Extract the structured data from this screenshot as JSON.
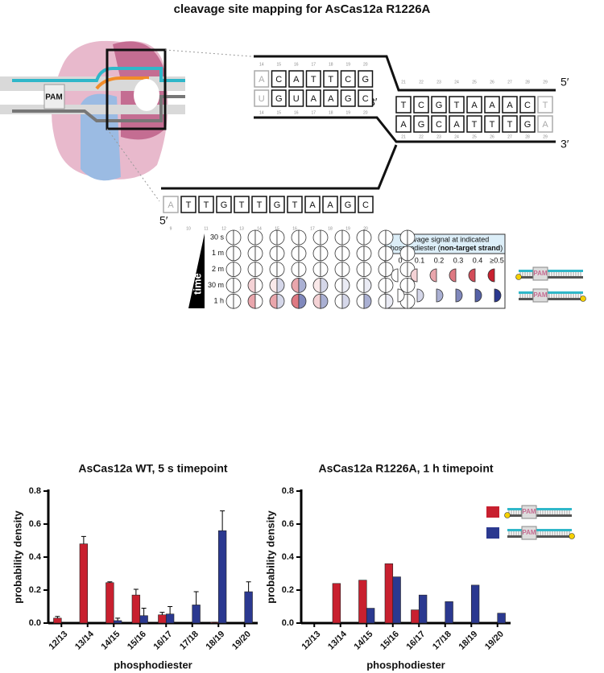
{
  "title": "cleavage site mapping for AsCas12a R1226A",
  "pam_label": "PAM",
  "strands": {
    "top_left": {
      "upper": [
        "A",
        "C",
        "A",
        "T",
        "T",
        "C",
        "G"
      ],
      "lower": [
        "U",
        "G",
        "U",
        "A",
        "A",
        "G",
        "C"
      ],
      "numbers": [
        14,
        15,
        16,
        17,
        18,
        19,
        20
      ],
      "end_label": "3′"
    },
    "right": {
      "upper": [
        "T",
        "C",
        "G",
        "T",
        "A",
        "A",
        "A",
        "C",
        "T"
      ],
      "lower": [
        "A",
        "G",
        "C",
        "A",
        "T",
        "T",
        "T",
        "G",
        "A"
      ],
      "numbers": [
        21,
        22,
        23,
        24,
        25,
        26,
        27,
        28,
        29
      ],
      "top_end": "5′",
      "bottom_end": "3′"
    },
    "bottom": {
      "bases": [
        "A",
        "T",
        "T",
        "G",
        "T",
        "T",
        "G",
        "T",
        "A",
        "A",
        "G",
        "C"
      ],
      "numbers": [
        9,
        10,
        11,
        12,
        13,
        14,
        15,
        16,
        17,
        18,
        19,
        20
      ],
      "end_label": "5′"
    }
  },
  "heatmap": {
    "axis_label": "time",
    "row_labels": [
      "30 s",
      "1 m",
      "2 m",
      "30 m",
      "1 h"
    ],
    "red": [
      [
        0,
        0,
        0,
        0,
        0,
        0,
        0,
        0,
        0
      ],
      [
        0,
        0,
        0,
        0,
        0,
        0,
        0,
        0,
        0
      ],
      [
        0,
        0,
        0,
        0,
        0,
        0,
        0,
        0,
        0
      ],
      [
        0,
        0.1,
        0.05,
        0.2,
        0.05,
        0,
        0,
        0,
        0
      ],
      [
        0,
        0.2,
        0.2,
        0.3,
        0.1,
        0,
        0,
        0,
        0
      ]
    ],
    "blue": [
      [
        0,
        0,
        0,
        0,
        0,
        0,
        0,
        0,
        0
      ],
      [
        0,
        0,
        0,
        0,
        0,
        0,
        0,
        0,
        0
      ],
      [
        0,
        0,
        0,
        0,
        0,
        0,
        0,
        0,
        0
      ],
      [
        0,
        0,
        0.1,
        0.2,
        0.1,
        0.05,
        0.05,
        0,
        0
      ],
      [
        0,
        0,
        0.1,
        0.3,
        0.2,
        0.1,
        0.2,
        0.05,
        0
      ]
    ],
    "legend": {
      "title_lines": [
        "cleavage signal at indicated",
        "phosphodiester (",
        ") "
      ],
      "title_bold": "non-target strand",
      "levels": [
        0,
        0.1,
        0.2,
        0.3,
        0.4,
        {
          "value": 0.5,
          "label": "≥0.5"
        }
      ]
    }
  },
  "chart_data": [
    {
      "type": "bar",
      "title": "AsCas12a WT, 5 s timepoint",
      "x_label": "phosphodiester",
      "y_label": "probability density",
      "categories": [
        "12/13",
        "13/14",
        "14/15",
        "15/16",
        "16/17",
        "17/18",
        "18/19",
        "19/20"
      ],
      "series": [
        {
          "color": "#c8202f",
          "values": [
            0.03,
            0.48,
            0.245,
            0.17,
            0.05,
            0,
            0.005,
            0
          ],
          "errors": [
            0.01,
            0.045,
            0.005,
            0.035,
            0.015,
            0,
            0,
            0
          ]
        },
        {
          "color": "#2b3990",
          "values": [
            0,
            0,
            0.015,
            0.045,
            0.055,
            0.11,
            0.56,
            0.19
          ],
          "errors": [
            0,
            0,
            0.015,
            0.045,
            0.045,
            0.08,
            0.12,
            0.06
          ]
        }
      ],
      "ylim": [
        0,
        0.8
      ],
      "yticks": [
        {
          "value": 0,
          "label": "0.0"
        },
        0.2,
        0.4,
        0.6,
        0.8
      ]
    },
    {
      "type": "bar",
      "title": "AsCas12a R1226A, 1 h timepoint",
      "x_label": "phosphodiester",
      "y_label": "probability density",
      "categories": [
        "12/13",
        "13/14",
        "14/15",
        "15/16",
        "16/17",
        "17/18",
        "18/19",
        "19/20"
      ],
      "series": [
        {
          "color": "#c8202f",
          "values": [
            0,
            0.24,
            0.26,
            0.36,
            0.08,
            0,
            0,
            0
          ]
        },
        {
          "color": "#2b3990",
          "values": [
            0,
            0,
            0.09,
            0.28,
            0.17,
            0.13,
            0.23,
            0.06
          ]
        }
      ],
      "ylim": [
        0,
        0.8
      ],
      "yticks": [
        {
          "value": 0,
          "label": "0.0"
        },
        0.2,
        0.4,
        0.6,
        0.8
      ],
      "legend": "top-right"
    }
  ]
}
